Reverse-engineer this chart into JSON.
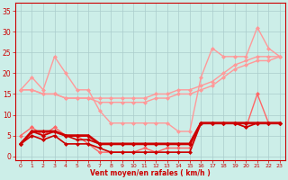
{
  "x": [
    0,
    1,
    2,
    3,
    4,
    5,
    6,
    7,
    8,
    9,
    10,
    11,
    12,
    13,
    14,
    15,
    16,
    17,
    18,
    19,
    20,
    21,
    22,
    23
  ],
  "series": [
    {
      "color": "#FF9999",
      "lw": 1.0,
      "marker": "D",
      "markersize": 2,
      "y": [
        16,
        19,
        16,
        24,
        20,
        16,
        16,
        11,
        8,
        8,
        8,
        8,
        8,
        8,
        6,
        6,
        19,
        26,
        24,
        24,
        24,
        31,
        26,
        24
      ]
    },
    {
      "color": "#FF9999",
      "lw": 1.0,
      "marker": "D",
      "markersize": 2,
      "y": [
        16,
        16,
        15,
        15,
        14,
        14,
        14,
        14,
        14,
        14,
        14,
        14,
        15,
        15,
        16,
        16,
        17,
        18,
        20,
        22,
        23,
        24,
        24,
        24
      ]
    },
    {
      "color": "#FF9999",
      "lw": 1.0,
      "marker": "D",
      "markersize": 2,
      "y": [
        16,
        16,
        15,
        15,
        14,
        14,
        14,
        13,
        13,
        13,
        13,
        13,
        14,
        14,
        15,
        15,
        16,
        17,
        19,
        21,
        22,
        23,
        23,
        24
      ]
    },
    {
      "color": "#FF6666",
      "lw": 1.0,
      "marker": "D",
      "markersize": 2,
      "y": [
        5,
        7,
        5,
        7,
        5,
        5,
        3,
        1,
        1,
        1,
        1,
        2,
        1,
        2,
        2,
        2,
        8,
        8,
        8,
        8,
        7,
        15,
        8,
        8
      ]
    },
    {
      "color": "#CC0000",
      "lw": 1.2,
      "marker": "D",
      "markersize": 2,
      "y": [
        3,
        5,
        4,
        5,
        3,
        3,
        3,
        2,
        1,
        1,
        1,
        1,
        1,
        1,
        1,
        1,
        8,
        8,
        8,
        8,
        7,
        8,
        8,
        8
      ]
    },
    {
      "color": "#CC0000",
      "lw": 1.2,
      "marker": "D",
      "markersize": 2,
      "y": [
        3,
        6,
        5,
        6,
        5,
        4,
        4,
        3,
        3,
        3,
        3,
        3,
        3,
        3,
        3,
        3,
        8,
        8,
        8,
        8,
        8,
        8,
        8,
        8
      ]
    },
    {
      "color": "#CC0000",
      "lw": 2.0,
      "marker": "D",
      "markersize": 2,
      "y": [
        3,
        6,
        6,
        6,
        5,
        5,
        5,
        3,
        3,
        3,
        3,
        3,
        3,
        3,
        3,
        3,
        8,
        8,
        8,
        8,
        8,
        8,
        8,
        8
      ]
    }
  ],
  "xlim": [
    -0.5,
    23.5
  ],
  "ylim": [
    -1,
    37
  ],
  "yticks": [
    0,
    5,
    10,
    15,
    20,
    25,
    30,
    35
  ],
  "xticks": [
    0,
    1,
    2,
    3,
    4,
    5,
    6,
    7,
    8,
    9,
    10,
    11,
    12,
    13,
    14,
    15,
    16,
    17,
    18,
    19,
    20,
    21,
    22,
    23
  ],
  "xlabel": "Vent moyen/en rafales ( km/h )",
  "background_color": "#cceee8",
  "grid_color": "#aacccc",
  "tick_color": "#CC0000",
  "label_color": "#CC0000",
  "spine_color": "#CC0000"
}
